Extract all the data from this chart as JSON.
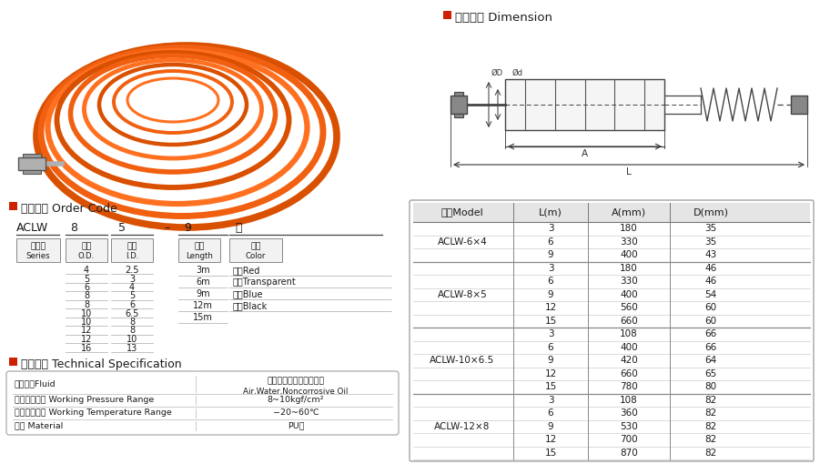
{
  "title_dimension": "外型尺寸 Dimension",
  "title_order_code": "订货型号 Order Code",
  "title_tech_spec": "技术参数 Technical Specification",
  "order_code_main": "ACLW",
  "order_code_fields": [
    "8",
    "5",
    "–",
    "9",
    "红"
  ],
  "box_labels_top": [
    "外径",
    "内径",
    "长度",
    "颜色"
  ],
  "box_labels_bot": [
    "O.D.",
    "I.D.",
    "Length",
    "Color"
  ],
  "series_top": "系列号",
  "series_bot": "Series",
  "od_values": [
    "4",
    "5",
    "6",
    "8",
    "8",
    "10",
    "10",
    "12",
    "12",
    "16"
  ],
  "id_values": [
    "2.5",
    "3",
    "4",
    "5",
    "6",
    "6.5",
    "8",
    "8",
    "10",
    "13"
  ],
  "length_values": [
    "3m",
    "6m",
    "9m",
    "12m",
    "15m"
  ],
  "color_values": [
    "红色Red",
    "白色Transparent",
    "蓝色Blue",
    "黑色Black"
  ],
  "tech_spec_rows": [
    [
      "工作介质Fluid",
      "空气、水、无腑蚀性的油",
      "Air,Water,Noncorrosive Oil"
    ],
    [
      "工作压力范围 Working Pressure Range",
      "8~10kgf/cm²",
      ""
    ],
    [
      "工作温度范围 Working Temperature Range",
      "−20~60℃",
      ""
    ],
    [
      "材料 Material",
      "PU料",
      ""
    ]
  ],
  "table_header": [
    "型号Model",
    "L(m)",
    "A(mm)",
    "D(mm)"
  ],
  "table_data": [
    [
      "ACLW-6×4",
      "3",
      "180",
      "35"
    ],
    [
      "",
      "6",
      "330",
      "35"
    ],
    [
      "",
      "9",
      "400",
      "43"
    ],
    [
      "ACLW-8×5",
      "3",
      "180",
      "46"
    ],
    [
      "",
      "6",
      "330",
      "46"
    ],
    [
      "",
      "9",
      "400",
      "54"
    ],
    [
      "",
      "12",
      "560",
      "60"
    ],
    [
      "",
      "15",
      "660",
      "60"
    ],
    [
      "ACLW-10×6.5",
      "3",
      "108",
      "66"
    ],
    [
      "",
      "6",
      "400",
      "66"
    ],
    [
      "",
      "9",
      "420",
      "64"
    ],
    [
      "",
      "12",
      "660",
      "65"
    ],
    [
      "",
      "15",
      "780",
      "80"
    ],
    [
      "ACLW-12×8",
      "3",
      "108",
      "82"
    ],
    [
      "",
      "6",
      "360",
      "82"
    ],
    [
      "",
      "9",
      "530",
      "82"
    ],
    [
      "",
      "12",
      "700",
      "82"
    ],
    [
      "",
      "15",
      "870",
      "82"
    ]
  ],
  "group_sizes": [
    3,
    5,
    5,
    5
  ],
  "group_names": [
    "ACLW-6×4",
    "ACLW-8×5",
    "ACLW-10×6.5",
    "ACLW-12×8"
  ],
  "bg_color": "#ffffff",
  "red_square_color": "#cc2200",
  "header_bg": "#e0e0e0",
  "text_color": "#1a1a1a",
  "table_line_color": "#aaaaaa",
  "group_line_color": "#777777"
}
